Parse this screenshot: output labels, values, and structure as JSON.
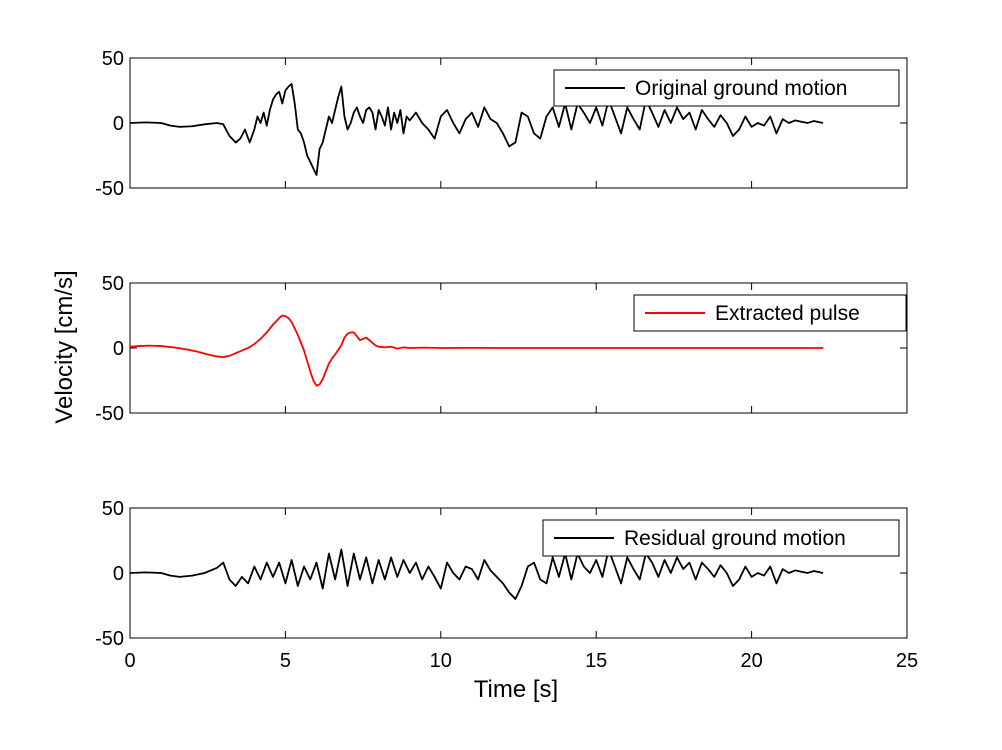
{
  "figure": {
    "ylabel": "Velocity [cm/s]",
    "xlabel": "Time [s]"
  },
  "chart_data": [
    {
      "type": "line",
      "xlim": [
        0,
        25
      ],
      "ylim": [
        -50,
        50
      ],
      "xticks": [
        0,
        5,
        10,
        15,
        20,
        25
      ],
      "yticks": [
        -50,
        0,
        50
      ],
      "show_xtick_labels": false,
      "grid": false,
      "legend_position": "top-right",
      "series": [
        {
          "name": "Original ground motion",
          "color": "#000000",
          "x": [
            0,
            0.5,
            1,
            1.3,
            1.6,
            2,
            2.4,
            2.8,
            3,
            3.2,
            3.4,
            3.55,
            3.7,
            3.85,
            4,
            4.1,
            4.2,
            4.3,
            4.4,
            4.5,
            4.6,
            4.7,
            4.8,
            4.9,
            5.0,
            5.1,
            5.2,
            5.3,
            5.4,
            5.5,
            5.6,
            5.7,
            5.8,
            5.9,
            6.0,
            6.1,
            6.2,
            6.3,
            6.4,
            6.5,
            6.6,
            6.7,
            6.8,
            6.9,
            7.0,
            7.1,
            7.2,
            7.3,
            7.4,
            7.5,
            7.6,
            7.7,
            7.8,
            7.9,
            8.0,
            8.1,
            8.2,
            8.3,
            8.4,
            8.5,
            8.6,
            8.7,
            8.8,
            8.9,
            9.0,
            9.2,
            9.4,
            9.6,
            9.8,
            10.0,
            10.2,
            10.4,
            10.6,
            10.8,
            11.0,
            11.2,
            11.4,
            11.6,
            11.8,
            12.0,
            12.2,
            12.4,
            12.6,
            12.8,
            13.0,
            13.2,
            13.4,
            13.6,
            13.8,
            14.0,
            14.2,
            14.4,
            14.6,
            14.8,
            15.0,
            15.2,
            15.4,
            15.6,
            15.8,
            16.0,
            16.2,
            16.4,
            16.6,
            16.8,
            17.0,
            17.2,
            17.4,
            17.6,
            17.8,
            18.0,
            18.2,
            18.4,
            18.6,
            18.8,
            19.0,
            19.2,
            19.4,
            19.6,
            19.8,
            20.0,
            20.2,
            20.4,
            20.6,
            20.8,
            21.0,
            21.2,
            21.4,
            21.6,
            21.8,
            22.0,
            22.3
          ],
          "y": [
            0,
            0.5,
            0,
            -2,
            -3,
            -2.5,
            -1,
            0,
            -1,
            -10,
            -15,
            -12,
            -5,
            -15,
            -5,
            5,
            0,
            8,
            -2,
            10,
            18,
            22,
            24,
            15,
            25,
            28,
            30,
            15,
            -5,
            -8,
            -15,
            -25,
            -30,
            -35,
            -40,
            -20,
            -15,
            -5,
            5,
            0,
            10,
            20,
            28,
            5,
            -5,
            0,
            8,
            12,
            5,
            0,
            10,
            12,
            8,
            -5,
            10,
            5,
            -2,
            12,
            -5,
            8,
            0,
            10,
            -8,
            5,
            2,
            8,
            0,
            -5,
            -12,
            5,
            10,
            0,
            -8,
            3,
            8,
            -3,
            12,
            3,
            0,
            -8,
            -18,
            -15,
            8,
            5,
            -8,
            -12,
            5,
            12,
            -3,
            15,
            -5,
            15,
            8,
            0,
            12,
            -2,
            18,
            5,
            -8,
            12,
            3,
            -5,
            18,
            8,
            -3,
            10,
            0,
            12,
            3,
            8,
            -5,
            10,
            3,
            -3,
            6,
            0,
            -10,
            -5,
            5,
            -3,
            0,
            -2,
            5,
            -8,
            3,
            0,
            2,
            1,
            0,
            1.5,
            0
          ],
          "legend_label": "Original ground motion"
        }
      ]
    },
    {
      "type": "line",
      "xlim": [
        0,
        25
      ],
      "ylim": [
        -50,
        50
      ],
      "xticks": [
        0,
        5,
        10,
        15,
        20,
        25
      ],
      "yticks": [
        -50,
        0,
        50
      ],
      "show_xtick_labels": false,
      "grid": false,
      "legend_position": "top-right",
      "series": [
        {
          "name": "Extracted pulse",
          "color": "#ff0000",
          "x": [
            0,
            0.3,
            0.6,
            1.0,
            1.4,
            1.8,
            2.2,
            2.5,
            2.8,
            3.0,
            3.2,
            3.4,
            3.6,
            3.8,
            4.0,
            4.2,
            4.4,
            4.6,
            4.8,
            4.9,
            5.0,
            5.1,
            5.2,
            5.4,
            5.6,
            5.8,
            5.9,
            6.0,
            6.1,
            6.2,
            6.3,
            6.4,
            6.5,
            6.6,
            6.8,
            6.9,
            7.0,
            7.1,
            7.2,
            7.3,
            7.4,
            7.5,
            7.6,
            7.7,
            7.8,
            7.9,
            8.0,
            8.2,
            8.4,
            8.6,
            8.8,
            9.0,
            9.5,
            10,
            11,
            12,
            13,
            14,
            15,
            16,
            17,
            18,
            19,
            20,
            21,
            22.3
          ],
          "y": [
            1,
            1.5,
            1.8,
            1.5,
            0.5,
            -1,
            -3,
            -5,
            -6.5,
            -7,
            -6,
            -4,
            -2,
            0,
            3,
            7,
            12,
            18,
            23,
            25,
            24.5,
            23,
            20,
            10,
            -2,
            -18,
            -25,
            -29,
            -28,
            -24,
            -18,
            -12,
            -8,
            -5,
            2,
            8,
            11,
            12,
            12,
            9,
            6,
            7,
            8,
            6,
            4,
            2,
            1,
            0.5,
            1,
            -0.5,
            0.5,
            0,
            0.3,
            0,
            0.1,
            0,
            0,
            0,
            0,
            0,
            0,
            0,
            0,
            0,
            0,
            0
          ],
          "legend_label": "Extracted pulse"
        }
      ]
    },
    {
      "type": "line",
      "xlim": [
        0,
        25
      ],
      "ylim": [
        -50,
        50
      ],
      "xticks": [
        0,
        5,
        10,
        15,
        20,
        25
      ],
      "yticks": [
        -50,
        0,
        50
      ],
      "show_xtick_labels": true,
      "grid": false,
      "legend_position": "top-right",
      "series": [
        {
          "name": "Residual ground motion",
          "color": "#000000",
          "x": [
            0,
            0.5,
            1,
            1.3,
            1.6,
            2,
            2.4,
            2.8,
            3,
            3.2,
            3.4,
            3.6,
            3.8,
            4.0,
            4.2,
            4.4,
            4.6,
            4.8,
            5.0,
            5.2,
            5.4,
            5.6,
            5.8,
            6.0,
            6.2,
            6.4,
            6.6,
            6.8,
            7.0,
            7.2,
            7.4,
            7.6,
            7.8,
            8.0,
            8.2,
            8.4,
            8.6,
            8.8,
            9.0,
            9.2,
            9.4,
            9.6,
            9.8,
            10.0,
            10.2,
            10.4,
            10.6,
            10.8,
            11.0,
            11.2,
            11.4,
            11.6,
            11.8,
            12.0,
            12.2,
            12.4,
            12.6,
            12.8,
            13.0,
            13.2,
            13.4,
            13.6,
            13.8,
            14.0,
            14.2,
            14.4,
            14.6,
            14.8,
            15.0,
            15.2,
            15.4,
            15.6,
            15.8,
            16.0,
            16.2,
            16.4,
            16.6,
            16.8,
            17.0,
            17.2,
            17.4,
            17.6,
            17.8,
            18.0,
            18.2,
            18.4,
            18.6,
            18.8,
            19.0,
            19.2,
            19.4,
            19.6,
            19.8,
            20.0,
            20.2,
            20.4,
            20.6,
            20.8,
            21.0,
            21.2,
            21.4,
            21.6,
            21.8,
            22.0,
            22.3
          ],
          "y": [
            0,
            0.5,
            0,
            -2,
            -3,
            -2,
            0,
            4,
            8,
            -5,
            -10,
            -3,
            -8,
            5,
            -5,
            8,
            -3,
            8,
            -8,
            10,
            -10,
            5,
            -5,
            8,
            -12,
            15,
            -5,
            18,
            -10,
            15,
            -5,
            12,
            -8,
            10,
            -5,
            12,
            -3,
            10,
            0,
            8,
            -5,
            5,
            -3,
            -12,
            8,
            0,
            -5,
            5,
            3,
            -5,
            10,
            2,
            -3,
            -8,
            -15,
            -20,
            -10,
            5,
            8,
            -5,
            -8,
            12,
            -3,
            15,
            -5,
            15,
            5,
            0,
            10,
            -3,
            18,
            5,
            -8,
            12,
            3,
            -5,
            15,
            8,
            -3,
            10,
            0,
            12,
            3,
            8,
            -5,
            8,
            3,
            -3,
            6,
            0,
            -10,
            -5,
            5,
            -3,
            0,
            -2,
            5,
            -8,
            3,
            0,
            2,
            1,
            0,
            1.5,
            0
          ],
          "legend_label": "Residual ground motion"
        }
      ]
    }
  ]
}
